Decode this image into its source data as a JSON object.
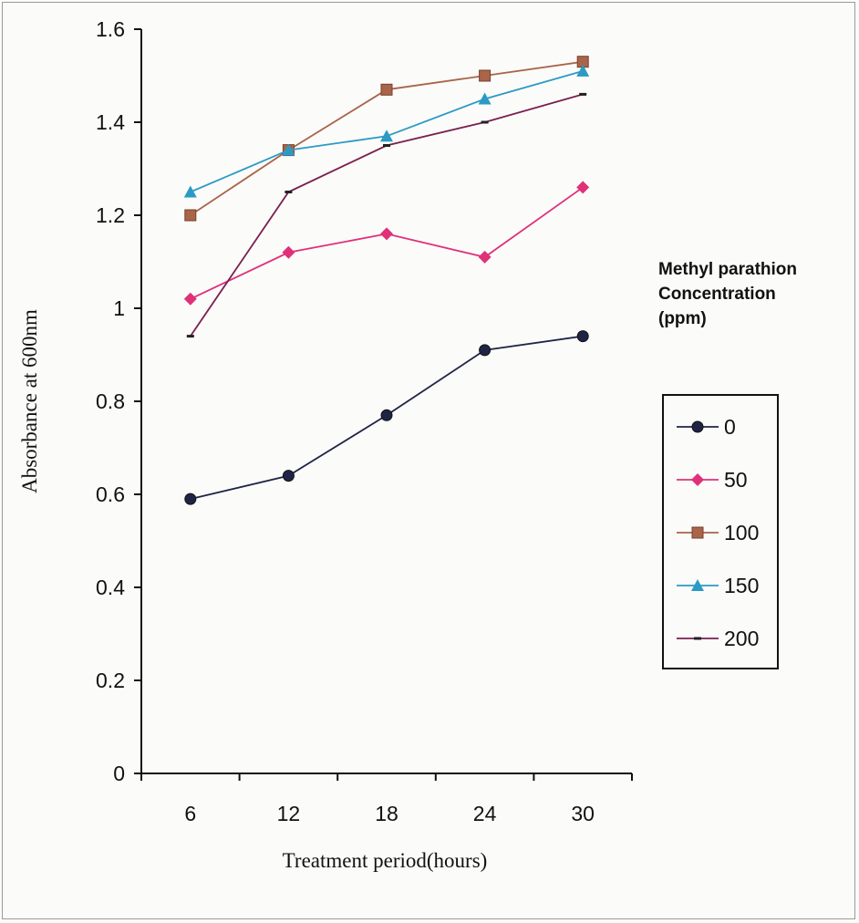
{
  "chart_data": {
    "type": "line",
    "title": "",
    "xlabel": "Treatment period(hours)",
    "ylabel": "Absorbance at 600nm",
    "categories": [
      "6",
      "12",
      "18",
      "24",
      "30"
    ],
    "ylim": [
      0,
      1.6
    ],
    "yticks": [
      "0",
      "0.2",
      "0.4",
      "0.6",
      "0.8",
      "1",
      "1.2",
      "1.4",
      "1.6"
    ],
    "grid": false,
    "legend_title": "Methyl parathion\nConcentration\n(ppm)",
    "legend_position": "right",
    "series": [
      {
        "name": "0",
        "values": [
          0.59,
          0.64,
          0.77,
          0.91,
          0.94
        ],
        "color": "#1f2447",
        "marker": "circle"
      },
      {
        "name": "50",
        "values": [
          1.02,
          1.12,
          1.16,
          1.11,
          1.26
        ],
        "color": "#e0307a",
        "marker": "diamond"
      },
      {
        "name": "100",
        "values": [
          1.2,
          1.34,
          1.47,
          1.5,
          1.53
        ],
        "color": "#a8654a",
        "marker": "square"
      },
      {
        "name": "150",
        "values": [
          1.25,
          1.34,
          1.37,
          1.45,
          1.51
        ],
        "color": "#2b9ac4",
        "marker": "triangle"
      },
      {
        "name": "200",
        "values": [
          0.94,
          1.25,
          1.35,
          1.4,
          1.46
        ],
        "color": "#7a1f4e",
        "marker": "dash"
      }
    ]
  }
}
